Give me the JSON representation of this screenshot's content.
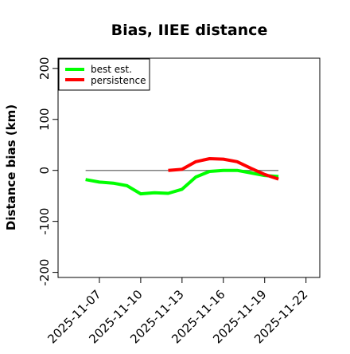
{
  "chart_data": {
    "type": "line",
    "title": "Bias, IIEE distance",
    "xlabel": "",
    "ylabel": "Distance bias (km)",
    "ylim": [
      -210,
      220
    ],
    "xlim": [
      "2025-11-04",
      "2025-11-23"
    ],
    "x_ticks": [
      "2025-11-07",
      "2025-11-10",
      "2025-11-13",
      "2025-11-16",
      "2025-11-19",
      "2025-11-22"
    ],
    "y_ticks": [
      -200,
      -100,
      0,
      100,
      200
    ],
    "grid": false,
    "legend_position": "top-left",
    "reference_line": {
      "y": 0,
      "from": "2025-11-06",
      "to": "2025-11-20",
      "color": "#808080"
    },
    "series": [
      {
        "name": "best est.",
        "color": "#00ff00",
        "x": [
          "2025-11-06",
          "2025-11-07",
          "2025-11-08",
          "2025-11-09",
          "2025-11-10",
          "2025-11-11",
          "2025-11-12",
          "2025-11-13",
          "2025-11-14",
          "2025-11-15",
          "2025-11-16",
          "2025-11-17",
          "2025-11-18",
          "2025-11-19",
          "2025-11-20"
        ],
        "values": [
          -18,
          -23,
          -25,
          -30,
          -46,
          -44,
          -45,
          -37,
          -13,
          -2,
          0,
          0,
          -5,
          -10,
          -12
        ]
      },
      {
        "name": "persistence",
        "color": "#ff0000",
        "x": [
          "2025-11-12",
          "2025-11-13",
          "2025-11-14",
          "2025-11-15",
          "2025-11-16",
          "2025-11-17",
          "2025-11-18",
          "2025-11-19",
          "2025-11-20"
        ],
        "values": [
          0,
          2,
          17,
          23,
          22,
          17,
          4,
          -8,
          -17
        ]
      }
    ]
  }
}
